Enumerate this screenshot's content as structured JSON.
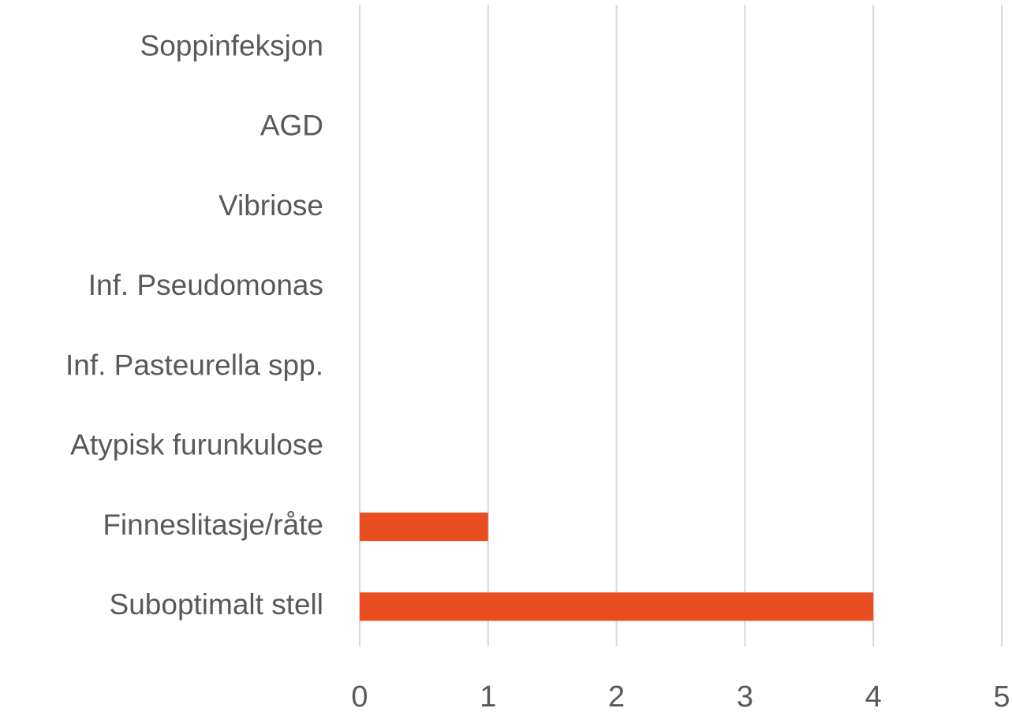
{
  "chart_data": {
    "type": "bar",
    "orientation": "horizontal",
    "categories": [
      "Soppinfeksjon",
      "AGD",
      "Vibriose",
      "Inf. Pseudomonas",
      "Inf. Pasteurella spp.",
      "Atypisk furunkulose",
      "Finneslitasje/råte",
      "Suboptimalt stell"
    ],
    "values": [
      0,
      0,
      0,
      0,
      0,
      0,
      1,
      4
    ],
    "color": "#e84e22",
    "xlim": [
      0,
      5
    ],
    "xticks": [
      0,
      1,
      2,
      3,
      4,
      5
    ],
    "grid": true
  }
}
